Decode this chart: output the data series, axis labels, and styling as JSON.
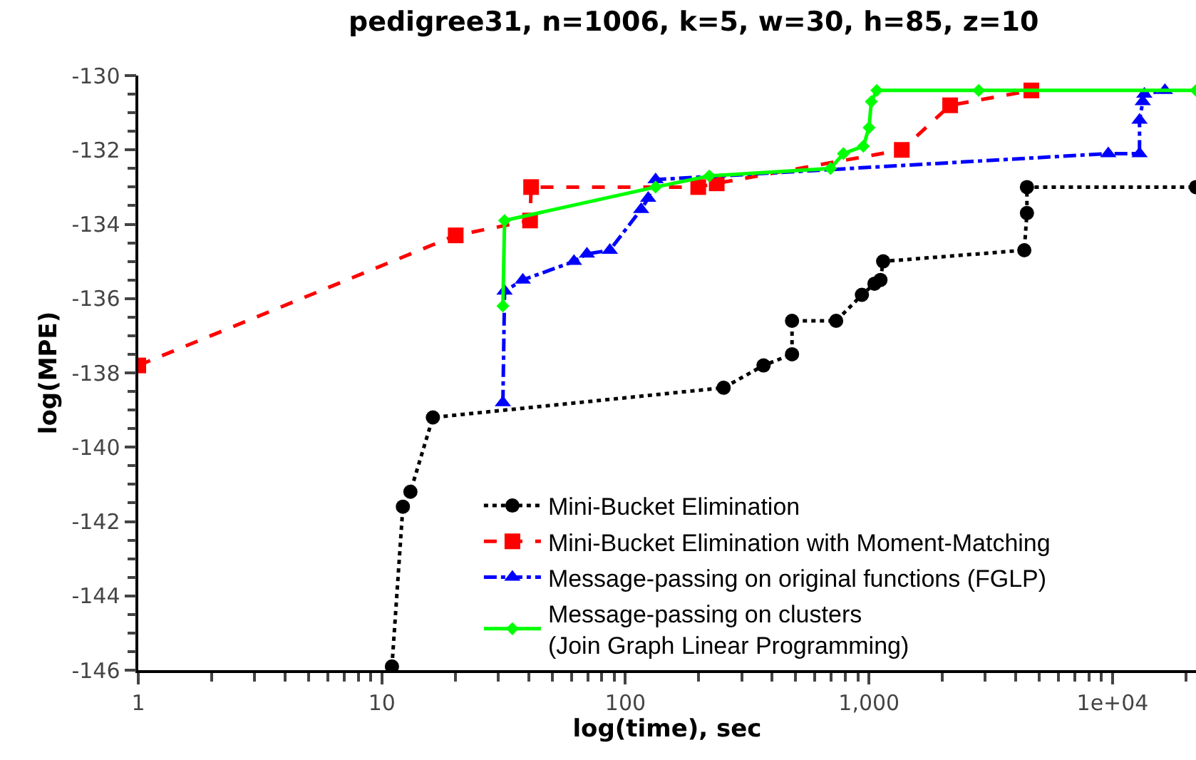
{
  "chart_data": {
    "type": "line",
    "title": "pedigree31, n=1006, k=5, w=30, h=85, z=10",
    "xlabel": "log(time), sec",
    "ylabel": "log(MPE)",
    "log": "x",
    "xlim": [
      1,
      22000
    ],
    "ylim": [
      -146,
      -130
    ],
    "xticks": [
      1,
      10,
      100,
      {
        "value": 1000,
        "label": "1,000"
      },
      {
        "value": 10000,
        "label": "1e+04"
      }
    ],
    "yticks": [
      -146,
      -144,
      -142,
      -140,
      -138,
      -136,
      -134,
      -132,
      -130
    ],
    "legend": "bottom right",
    "series": [
      {
        "name": "Mini-Bucket Elimination",
        "color": "#000000",
        "marker": "circle",
        "line_style": "dotted",
        "x": [
          11.0,
          12.2,
          13.1,
          16.2,
          253,
          369,
          483,
          483,
          733,
          935,
          1053,
          1114,
          1143,
          4340,
          4450,
          4450,
          22000
        ],
        "values": [
          -145.9,
          -141.6,
          -141.2,
          -139.2,
          -138.4,
          -137.8,
          -137.5,
          -136.6,
          -136.6,
          -135.9,
          -135.6,
          -135.5,
          -135.0,
          -134.7,
          -133.7,
          -133.0,
          -133.0
        ]
      },
      {
        "name": "Mini-Bucket Elimination with Moment-Matching",
        "color": "#ff0000",
        "marker": "square",
        "line_style": "dashed",
        "x": [
          1,
          20.1,
          40.6,
          41,
          199,
          237,
          1363,
          2153,
          4640
        ],
        "values": [
          -137.8,
          -134.3,
          -133.9,
          -133.0,
          -133.0,
          -132.9,
          -132.0,
          -130.8,
          -130.4
        ]
      },
      {
        "name": "Message-passing on original functions (FGLP)",
        "color": "#0000ff",
        "marker": "triangle",
        "line_style": "dashdot",
        "x": [
          31.4,
          31.9,
          37.9,
          61.5,
          69.5,
          86.3,
          116,
          124,
          133,
          9600,
          12900,
          12900,
          13300,
          13500,
          16400
        ],
        "values": [
          -138.8,
          -135.8,
          -135.5,
          -135.0,
          -134.8,
          -134.7,
          -133.6,
          -133.3,
          -132.8,
          -132.1,
          -132.1,
          -131.2,
          -130.7,
          -130.5,
          -130.4
        ]
      },
      {
        "name": "Message-passing on clusters\n(Join Graph Linear Programming)",
        "color": "#00ff00",
        "marker": "diamond",
        "line_style": "solid",
        "x": [
          31.4,
          31.9,
          133,
          221,
          695,
          785,
          948,
          1000,
          1022,
          1076,
          2820,
          22000
        ],
        "values": [
          -136.2,
          -133.9,
          -133.0,
          -132.7,
          -132.5,
          -132.1,
          -131.9,
          -131.4,
          -130.7,
          -130.4,
          -130.4,
          -130.4
        ]
      }
    ]
  }
}
